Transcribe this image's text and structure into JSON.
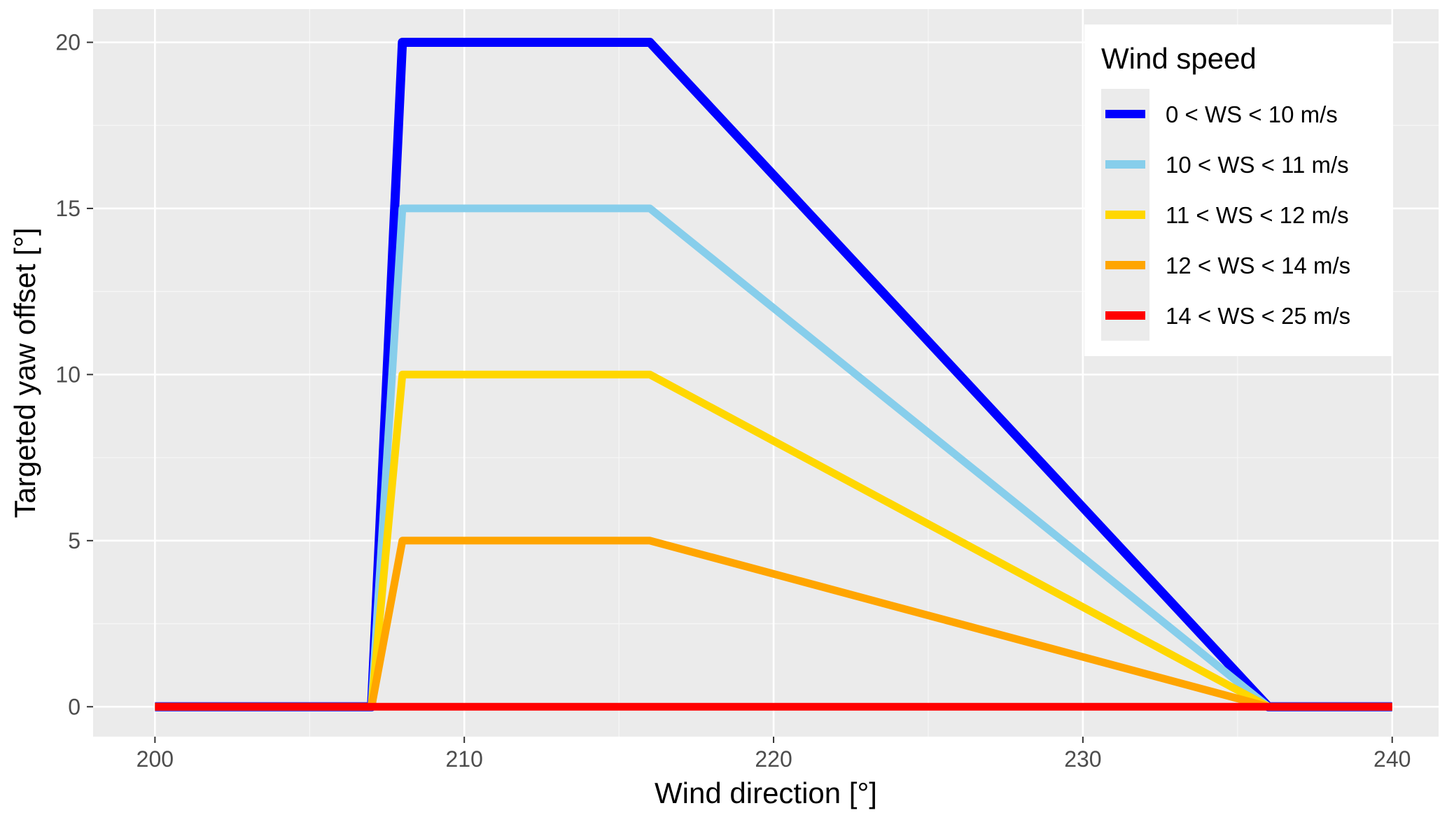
{
  "chart_data": {
    "type": "line",
    "xlabel": "Wind direction [°]",
    "ylabel": "Targeted yaw offset [°]",
    "xlim": [
      198,
      241.5
    ],
    "ylim": [
      -0.9,
      21.0
    ],
    "x_ticks": [
      200,
      210,
      220,
      230,
      240
    ],
    "y_ticks": [
      0,
      5,
      10,
      15,
      20
    ],
    "x_tick_labels": [
      "200",
      "210",
      "220",
      "230",
      "240"
    ],
    "y_tick_labels": [
      "0",
      "5",
      "10",
      "15",
      "20"
    ],
    "grid": true,
    "legend": {
      "title": "Wind speed",
      "position": "top-right"
    },
    "series": [
      {
        "name": "0 < WS < 10 m/s",
        "color": "#0000ff",
        "x": [
          200,
          207,
          208,
          216,
          236,
          240
        ],
        "y": [
          0,
          0,
          20,
          20,
          0,
          0
        ]
      },
      {
        "name": "10 < WS < 11 m/s",
        "color": "#87ceeb",
        "x": [
          200,
          207,
          208,
          216,
          236,
          240
        ],
        "y": [
          0,
          0,
          15,
          15,
          0,
          0
        ]
      },
      {
        "name": "11 < WS < 12 m/s",
        "color": "#ffd700",
        "x": [
          200,
          207,
          208,
          216,
          236,
          240
        ],
        "y": [
          0,
          0,
          10,
          10,
          0,
          0
        ]
      },
      {
        "name": "12 < WS < 14 m/s",
        "color": "#ffa500",
        "x": [
          200,
          207,
          208,
          216,
          236,
          240
        ],
        "y": [
          0,
          0,
          5,
          5,
          0,
          0
        ]
      },
      {
        "name": "14 < WS < 25 m/s",
        "color": "#ff0000",
        "x": [
          200,
          240
        ],
        "y": [
          0,
          0
        ]
      }
    ]
  }
}
